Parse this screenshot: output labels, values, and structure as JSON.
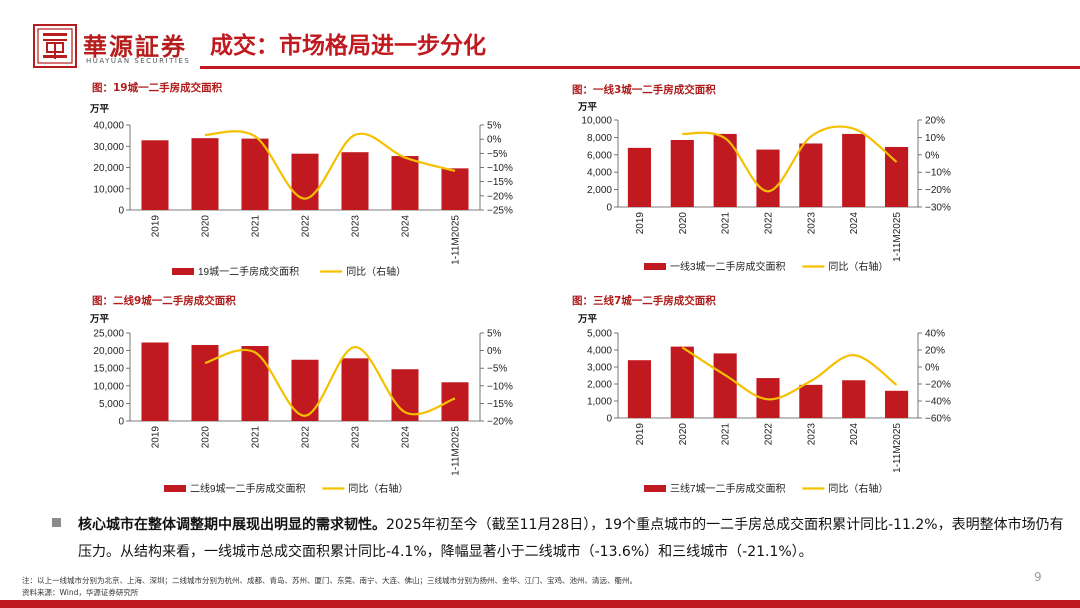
{
  "header": {
    "logo_cn": "華源証券",
    "logo_en": "HUAYUAN SECURITIES",
    "title": "成交：市场格局进一步分化",
    "brand_color": "#c0191f"
  },
  "chart_data": [
    {
      "type": "bar",
      "title": "图：19城一二手房成交面积",
      "unit": "万平",
      "categories": [
        "2019",
        "2020",
        "2021",
        "2022",
        "2023",
        "2024",
        "1-11M2025"
      ],
      "series": [
        {
          "name": "19城一二手房成交面积",
          "axis": "left",
          "type": "bar",
          "color": "#c0191f",
          "values": [
            32800,
            33800,
            33600,
            26500,
            27200,
            25400,
            19600
          ]
        },
        {
          "name": "同比（右轴）",
          "axis": "right",
          "type": "line",
          "color": "#f5c000",
          "values": [
            null,
            1.5,
            1.0,
            -21.0,
            1.5,
            -6.5,
            -11.2
          ]
        }
      ],
      "ylim": [
        0,
        40000
      ],
      "yticks": [
        "0",
        "10,000",
        "20,000",
        "30,000",
        "40,000"
      ],
      "y2lim": [
        -25,
        5
      ],
      "y2ticks": [
        "−25%",
        "−20%",
        "−15%",
        "−10%",
        "−5%",
        "0%",
        "5%"
      ]
    },
    {
      "type": "bar",
      "title": "图：一线3城一二手房成交面积",
      "unit": "万平",
      "categories": [
        "2019",
        "2020",
        "2021",
        "2022",
        "2023",
        "2024",
        "1-11M2025"
      ],
      "series": [
        {
          "name": "一线3城一二手房成交面积",
          "axis": "left",
          "type": "bar",
          "color": "#c0191f",
          "values": [
            6800,
            7700,
            8400,
            6600,
            7300,
            8400,
            6900
          ]
        },
        {
          "name": "同比（右轴）",
          "axis": "right",
          "type": "line",
          "color": "#f5c000",
          "values": [
            null,
            12.0,
            9.5,
            -21.0,
            10.5,
            15.0,
            -4.1
          ]
        }
      ],
      "ylim": [
        0,
        10000
      ],
      "yticks": [
        "0",
        "2,000",
        "4,000",
        "6,000",
        "8,000",
        "10,000"
      ],
      "y2lim": [
        -30,
        20
      ],
      "y2ticks": [
        "−30%",
        "−20%",
        "−10%",
        "0%",
        "10%",
        "20%"
      ]
    },
    {
      "type": "bar",
      "title": "图：二线9城一二手房成交面积",
      "unit": "万平",
      "categories": [
        "2019",
        "2020",
        "2021",
        "2022",
        "2023",
        "2024",
        "1-11M2025"
      ],
      "series": [
        {
          "name": "二线9城一二手房成交面积",
          "axis": "left",
          "type": "bar",
          "color": "#c0191f",
          "values": [
            22300,
            21600,
            21300,
            17400,
            17800,
            14700,
            11000
          ]
        },
        {
          "name": "同比（右轴）",
          "axis": "right",
          "type": "line",
          "color": "#f5c000",
          "values": [
            null,
            -3.5,
            -0.5,
            -18.5,
            1.0,
            -17.5,
            -13.6
          ]
        }
      ],
      "ylim": [
        0,
        25000
      ],
      "yticks": [
        "0",
        "5,000",
        "10,000",
        "15,000",
        "20,000",
        "25,000"
      ],
      "y2lim": [
        -20,
        5
      ],
      "y2ticks": [
        "−20%",
        "−15%",
        "−10%",
        "−5%",
        "0%",
        "5%"
      ]
    },
    {
      "type": "bar",
      "title": "图：三线7城一二手房成交面积",
      "unit": "万平",
      "categories": [
        "2019",
        "2020",
        "2021",
        "2022",
        "2023",
        "2024",
        "1-11M2025"
      ],
      "series": [
        {
          "name": "三线7城一二手房成交面积",
          "axis": "left",
          "type": "bar",
          "color": "#c0191f",
          "values": [
            3400,
            4200,
            3800,
            2350,
            1950,
            2220,
            1600
          ]
        },
        {
          "name": "同比（右轴）",
          "axis": "right",
          "type": "line",
          "color": "#f5c000",
          "values": [
            null,
            23.0,
            -9.5,
            -38.0,
            -16.5,
            14.0,
            -21.1
          ]
        }
      ],
      "ylim": [
        0,
        5000
      ],
      "yticks": [
        "0",
        "1,000",
        "2,000",
        "3,000",
        "4,000",
        "5,000"
      ],
      "y2lim": [
        -60,
        40
      ],
      "y2ticks": [
        "−60%",
        "−40%",
        "−20%",
        "0%",
        "20%",
        "40%"
      ]
    }
  ],
  "summary": {
    "bullet_bold": "核心城市在整体调整期中展现出明显的需求韧性。",
    "bullet_text": "2025年初至今（截至11月28日），19个重点城市的一二手房总成交面积累计同比-11.2%，表明整体市场仍有压力。从结构来看，一线城市总成交面积累计同比-4.1%，降幅显著小于二线城市（-13.6%）和三线城市（-21.1%）。"
  },
  "footnotes": {
    "note": "注：以上一线城市分别为北京、上海、深圳；二线城市分别为杭州、成都、青岛、苏州、厦门、东莞、南宁、大连、佛山；三线城市分别为扬州、金华、江门、宝鸡、池州、清远、衢州。",
    "source": "资料来源：Wind，华源证券研究所"
  },
  "page_number": "9"
}
